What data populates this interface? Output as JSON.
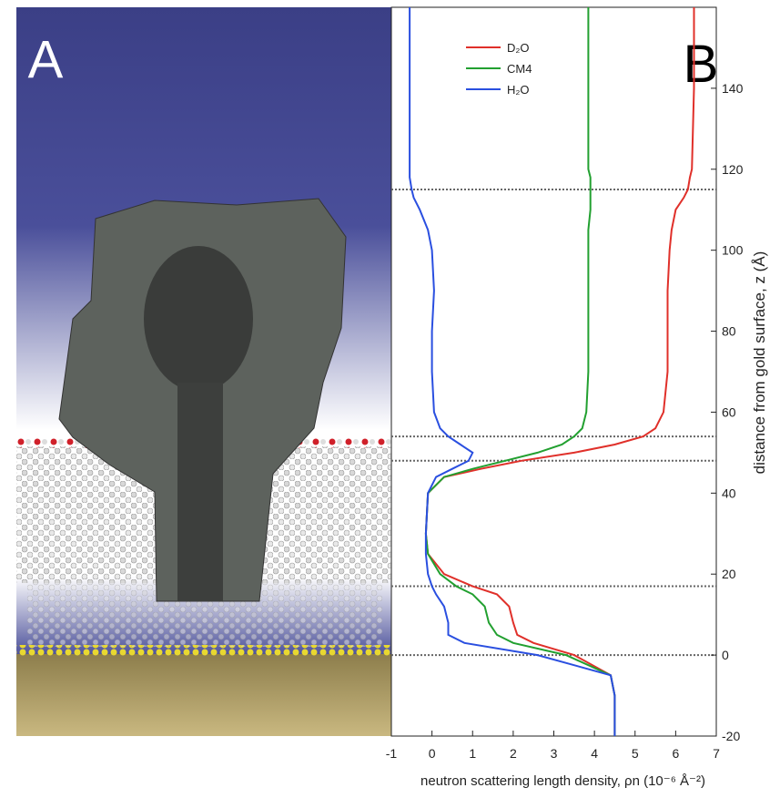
{
  "panel_a": {
    "label": "A"
  },
  "chart_data": {
    "type": "line",
    "orientation": "vertical",
    "panel_label": "B",
    "xlabel": "neutron scattering length density, ρn  (10⁻⁶ Å⁻²)",
    "ylabel": "distance from gold surface, z  (Å)",
    "xlim": [
      -1,
      7
    ],
    "xticks": [
      -1,
      0,
      1,
      2,
      3,
      4,
      5,
      6,
      7
    ],
    "ylim": [
      -20,
      160
    ],
    "yticks": [
      -20,
      0,
      20,
      40,
      60,
      80,
      100,
      120,
      140
    ],
    "boundaries": [
      0,
      17,
      48,
      54,
      115
    ],
    "z": [
      -20,
      -10,
      -5,
      0,
      3,
      5,
      8,
      12,
      15,
      17,
      20,
      25,
      30,
      40,
      44,
      46,
      48,
      50,
      52,
      54,
      56,
      60,
      70,
      80,
      90,
      100,
      105,
      110,
      113,
      115,
      118,
      120,
      140,
      160
    ],
    "series": [
      {
        "name": "D₂O",
        "color": "#e0302a",
        "values": [
          4.5,
          4.5,
          4.4,
          3.5,
          2.5,
          2.1,
          2.0,
          1.9,
          1.6,
          1.0,
          0.3,
          -0.1,
          -0.15,
          -0.1,
          0.3,
          1.2,
          2.2,
          3.5,
          4.5,
          5.2,
          5.5,
          5.7,
          5.8,
          5.8,
          5.8,
          5.85,
          5.9,
          6.0,
          6.2,
          6.3,
          6.35,
          6.4,
          6.45,
          6.45
        ]
      },
      {
        "name": "CM4",
        "color": "#22a030",
        "values": [
          4.5,
          4.5,
          4.4,
          3.3,
          2.0,
          1.6,
          1.4,
          1.3,
          1.0,
          0.6,
          0.2,
          -0.1,
          -0.15,
          -0.1,
          0.3,
          1.0,
          1.8,
          2.6,
          3.2,
          3.5,
          3.7,
          3.8,
          3.85,
          3.85,
          3.85,
          3.85,
          3.85,
          3.9,
          3.9,
          3.9,
          3.9,
          3.85,
          3.85,
          3.85
        ]
      },
      {
        "name": "H₂O",
        "color": "#2a4fe0",
        "values": [
          4.5,
          4.5,
          4.4,
          2.6,
          0.8,
          0.4,
          0.4,
          0.3,
          0.1,
          0,
          -0.1,
          -0.15,
          -0.15,
          -0.1,
          0.1,
          0.5,
          0.9,
          1.0,
          0.7,
          0.4,
          0.2,
          0.05,
          0,
          0,
          0.05,
          0,
          -0.1,
          -0.3,
          -0.45,
          -0.5,
          -0.55,
          -0.55,
          -0.55,
          -0.55
        ]
      }
    ]
  }
}
